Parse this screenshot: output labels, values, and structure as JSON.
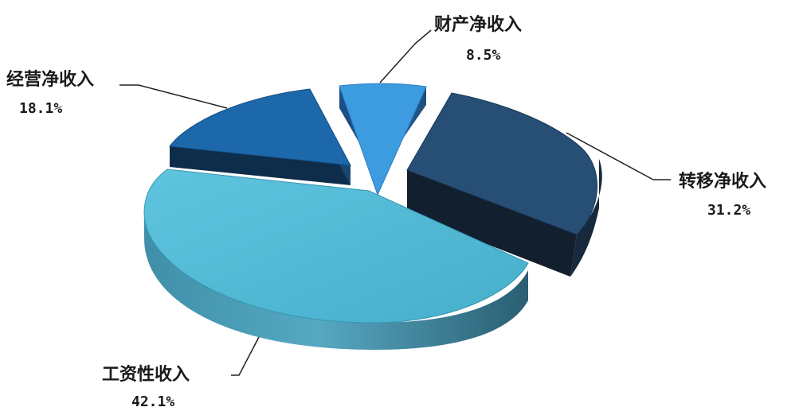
{
  "chart_data": {
    "type": "pie",
    "style": "3d-exploded",
    "title": "",
    "slices": [
      {
        "label": "财产净收入",
        "value": 8.5,
        "value_label": "8.5%",
        "color": "#3d9be0"
      },
      {
        "label": "转移净收入",
        "value": 31.2,
        "value_label": "31.2%",
        "color": "#274f76"
      },
      {
        "label": "工资性收入",
        "value": 42.1,
        "value_label": "42.1%",
        "color": "#4ab4d2"
      },
      {
        "label": "经营净收入",
        "value": 18.1,
        "value_label": "18.1%",
        "color": "#1c68aa"
      }
    ]
  }
}
